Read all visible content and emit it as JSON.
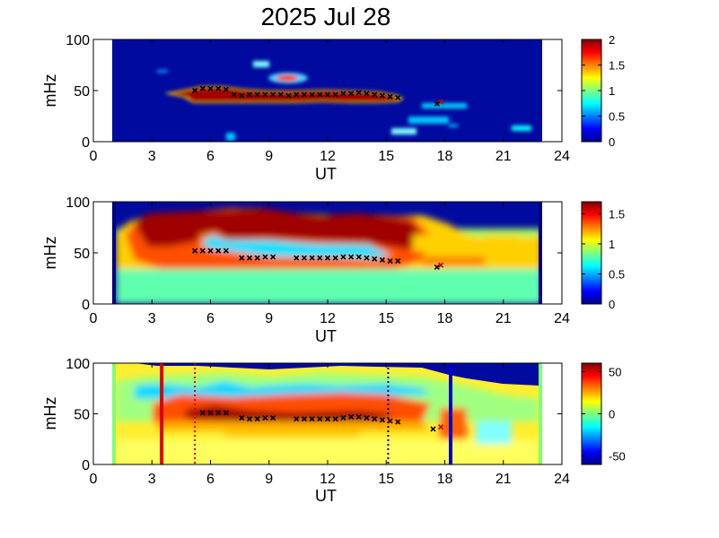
{
  "title": "2025 Jul 28",
  "chart_data": [
    {
      "type": "heatmap",
      "panel": 1,
      "xlabel": "UT",
      "ylabel": "mHz",
      "xlim": [
        0,
        24
      ],
      "ylim": [
        0,
        100
      ],
      "xticks": [
        "0",
        "3",
        "6",
        "9",
        "12",
        "15",
        "18",
        "21",
        "24"
      ],
      "yticks": [
        "0",
        "50",
        "100"
      ],
      "data_x_range": [
        1,
        23
      ],
      "colorbar": {
        "min": 0,
        "max": 2,
        "ticks": [
          "0",
          "0.5",
          "1",
          "1.5",
          "2"
        ]
      },
      "markers_ut": [
        5.2,
        5.6,
        6.0,
        6.4,
        6.8,
        7.2,
        7.6,
        8.0,
        8.4,
        8.8,
        9.2,
        9.6,
        10.0,
        10.4,
        10.8,
        11.2,
        11.6,
        12.0,
        12.4,
        12.8,
        13.2,
        13.6,
        14.0,
        14.4,
        14.8,
        15.2,
        15.6,
        17.6,
        17.8
      ],
      "markers_mhz": [
        50,
        52,
        52,
        52,
        51,
        46,
        45,
        46,
        46,
        46,
        46,
        46,
        45,
        46,
        46,
        46,
        46,
        46,
        46,
        47,
        47,
        48,
        47,
        46,
        45,
        44,
        43,
        37,
        39
      ]
    },
    {
      "type": "heatmap",
      "panel": 2,
      "xlabel": "UT",
      "ylabel": "mHz",
      "xlim": [
        0,
        24
      ],
      "ylim": [
        0,
        100
      ],
      "xticks": [
        "0",
        "3",
        "6",
        "9",
        "12",
        "15",
        "18",
        "21",
        "24"
      ],
      "yticks": [
        "0",
        "50",
        "100"
      ],
      "data_x_range": [
        1,
        23
      ],
      "colorbar": {
        "min": 0,
        "max": 1.7,
        "ticks": [
          "0",
          "0.5",
          "1",
          "1.5"
        ]
      },
      "markers_ut": [
        5.2,
        5.6,
        6.0,
        6.4,
        6.8,
        7.6,
        8.0,
        8.4,
        8.8,
        9.2,
        10.4,
        10.8,
        11.2,
        11.6,
        12.0,
        12.4,
        12.8,
        13.2,
        13.6,
        14.0,
        14.4,
        14.8,
        15.2,
        15.6,
        17.6,
        17.8
      ],
      "markers_mhz": [
        52,
        52,
        52,
        52,
        52,
        45,
        45,
        45,
        46,
        46,
        45,
        45,
        45,
        45,
        45,
        45,
        46,
        46,
        46,
        45,
        44,
        43,
        42,
        42,
        36,
        38
      ]
    },
    {
      "type": "heatmap",
      "panel": 3,
      "xlabel": "UT",
      "ylabel": "mHz",
      "xlim": [
        0,
        24
      ],
      "ylim": [
        0,
        100
      ],
      "xticks": [
        "0",
        "3",
        "6",
        "9",
        "12",
        "15",
        "18",
        "21",
        "24"
      ],
      "yticks": [
        "0",
        "50",
        "100"
      ],
      "data_x_range": [
        1,
        23
      ],
      "colorbar": {
        "min": -60,
        "max": 60,
        "ticks": [
          "-50",
          "0",
          "50"
        ]
      },
      "vertical_lines": [
        {
          "ut": 3.5,
          "color": "#dd0000",
          "style": "solid"
        },
        {
          "ut": 5.2,
          "color": "#dd0000",
          "style": "dotted"
        },
        {
          "ut": 15.1,
          "color": "#000066",
          "style": "dotted"
        },
        {
          "ut": 18.3,
          "color": "#0000cc",
          "style": "solid"
        }
      ],
      "markers_ut": [
        5.6,
        6.0,
        6.4,
        6.8,
        7.6,
        8.0,
        8.4,
        8.8,
        9.2,
        10.4,
        10.8,
        11.2,
        11.6,
        12.0,
        12.4,
        12.8,
        13.2,
        13.6,
        14.0,
        14.4,
        14.8,
        15.2,
        15.6,
        17.4,
        17.8
      ],
      "markers_mhz": [
        51,
        51,
        51,
        51,
        46,
        45,
        45,
        46,
        46,
        45,
        45,
        45,
        45,
        45,
        45,
        46,
        47,
        47,
        46,
        45,
        44,
        43,
        42,
        35,
        37
      ]
    }
  ]
}
